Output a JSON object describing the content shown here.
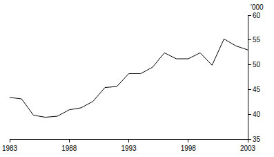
{
  "chart_data": {
    "type": "line",
    "ylabel": "'000",
    "x": [
      1983,
      1984,
      1985,
      1986,
      1987,
      1988,
      1989,
      1990,
      1991,
      1992,
      1993,
      1994,
      1995,
      1996,
      1997,
      1998,
      1999,
      2000,
      2001,
      2002,
      2003
    ],
    "values": [
      43.4,
      43.1,
      39.8,
      39.4,
      39.6,
      40.9,
      41.3,
      42.6,
      45.4,
      45.6,
      48.2,
      48.2,
      49.5,
      52.4,
      51.2,
      51.2,
      52.4,
      49.9,
      55.2,
      53.8,
      53.0
    ],
    "color": "#000000",
    "xlim": [
      1983,
      2003
    ],
    "xticks": [
      1983,
      1988,
      1993,
      1998,
      2003
    ],
    "ylim": [
      35,
      60
    ],
    "yticks": [
      35,
      40,
      45,
      50,
      55,
      60
    ],
    "grid": false
  }
}
